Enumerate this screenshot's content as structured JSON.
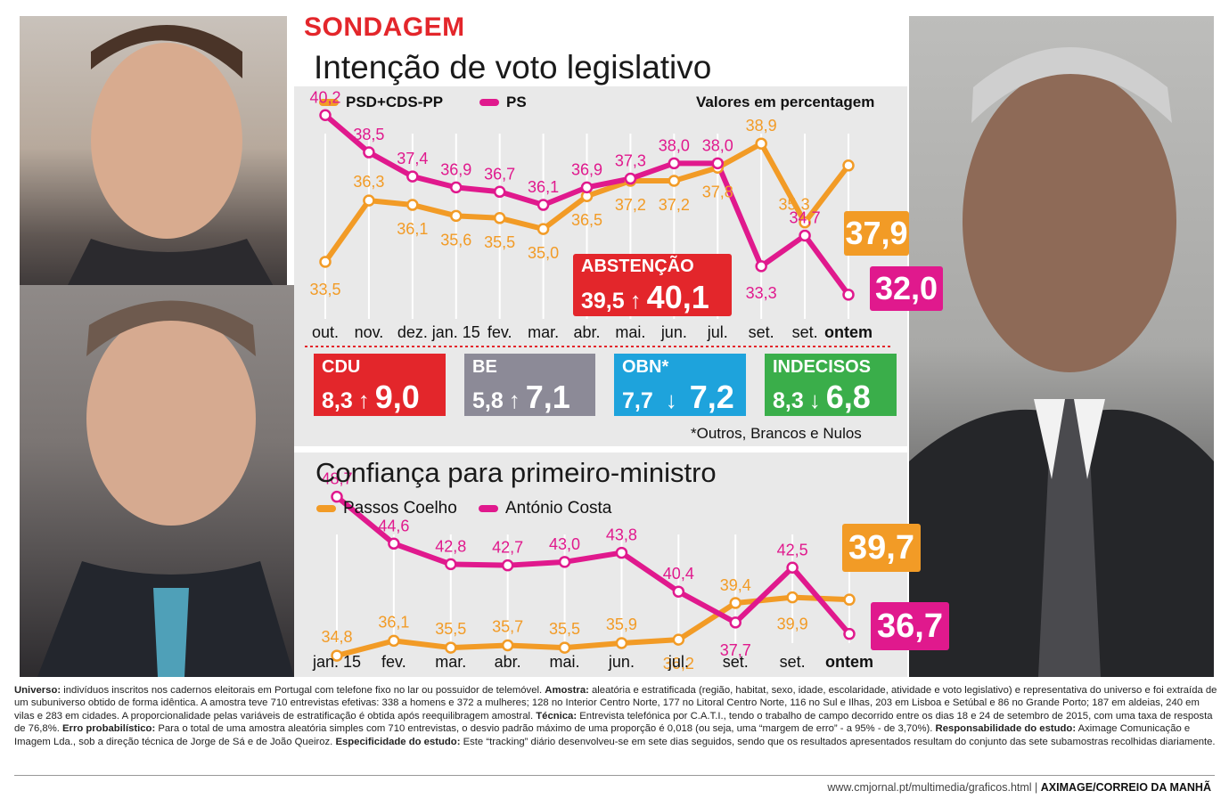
{
  "header": {
    "kicker": "SONDAGEM",
    "title": "Intenção de voto legislativo",
    "units_note": "Valores em percentagem"
  },
  "colors": {
    "orange": "#f29b26",
    "magenta": "#e0198d",
    "red": "#e3262b",
    "grey": "#8c8a97",
    "blue": "#1ea3dc",
    "green": "#3aae4a"
  },
  "chart_data": [
    {
      "type": "line",
      "title": "Intenção de voto legislativo",
      "xlabel": "",
      "ylabel": "Valores em percentagem",
      "categories": [
        "out.",
        "nov.",
        "dez.",
        "jan. 15",
        "fev.",
        "mar.",
        "abr.",
        "mai.",
        "jun.",
        "jul.",
        "set.",
        "set.",
        "ontem"
      ],
      "series": [
        {
          "name": "PSD+CDS-PP",
          "color": "#f29b26",
          "values": [
            33.5,
            36.3,
            36.1,
            35.6,
            35.5,
            35.0,
            36.5,
            37.2,
            37.2,
            37.8,
            38.9,
            35.3,
            37.9
          ]
        },
        {
          "name": "PS",
          "color": "#e0198d",
          "values": [
            40.2,
            38.5,
            37.4,
            36.9,
            36.7,
            36.1,
            36.9,
            37.3,
            38.0,
            38.0,
            33.3,
            34.7,
            32.0
          ]
        }
      ],
      "last_values": {
        "PSD+CDS-PP": "37,9",
        "PS": "32,0"
      },
      "ylim": [
        30,
        42
      ],
      "grid": true
    },
    {
      "type": "line",
      "title": "Confiança para primeiro-ministro",
      "xlabel": "",
      "ylabel": "",
      "categories": [
        "jan. 15",
        "fev.",
        "mar.",
        "abr.",
        "mai.",
        "jun.",
        "jul.",
        "set.",
        "set.",
        "ontem"
      ],
      "series": [
        {
          "name": "Passos Coelho",
          "color": "#f29b26",
          "values": [
            34.8,
            36.1,
            35.5,
            35.7,
            35.5,
            35.9,
            36.2,
            39.4,
            39.9,
            39.7
          ]
        },
        {
          "name": "António Costa",
          "color": "#e0198d",
          "values": [
            48.7,
            44.6,
            42.8,
            42.7,
            43.0,
            43.8,
            40.4,
            37.7,
            42.5,
            36.7
          ]
        }
      ],
      "last_values": {
        "Passos Coelho": "39,7",
        "António Costa": "36,7"
      },
      "ylim": [
        32,
        50
      ],
      "grid": true
    }
  ],
  "chart1": {
    "legend": [
      "PSD+CDS-PP",
      "PS"
    ],
    "labels_orange": [
      "33,5",
      "36,3",
      "36,1",
      "35,6",
      "35,5",
      "35,0",
      "36,5",
      "37,2",
      "37,2",
      "37,8",
      "38,9",
      "35,3"
    ],
    "labels_magenta": [
      "40,2",
      "38,5",
      "37,4",
      "36,9",
      "36,7",
      "36,1",
      "36,9",
      "37,3",
      "38,0",
      "38,0",
      "33,3",
      "34,7"
    ],
    "final_orange": "37,9",
    "final_magenta": "32,0"
  },
  "abstencao": {
    "label": "ABSTENÇÃO",
    "old": "39,5",
    "arrow": "↑",
    "new": "40,1"
  },
  "categories_boxes": [
    {
      "name": "CDU",
      "old": "8,3",
      "arrow": "↑",
      "new": "9,0"
    },
    {
      "name": "BE",
      "old": "5,8",
      "arrow": "↑",
      "new": "7,1"
    },
    {
      "name": "OBN*",
      "old": "7,7",
      "arrow": "↓",
      "new": "7,2"
    },
    {
      "name": "INDECISOS",
      "old": "8,3",
      "arrow": "↓",
      "new": "6,8"
    }
  ],
  "obn_note": "*Outros, Brancos e Nulos",
  "chart2": {
    "title": "Confiança para primeiro-ministro",
    "legend": [
      "Passos Coelho",
      "António Costa"
    ],
    "labels_orange": [
      "34,8",
      "36,1",
      "35,5",
      "35,7",
      "35,5",
      "35,9",
      "36,2",
      "39,4",
      "39,9"
    ],
    "labels_magenta": [
      "48,7",
      "44,6",
      "42,8",
      "42,7",
      "43,0",
      "43,8",
      "40,4",
      "37,7",
      "42,5"
    ],
    "final_orange": "39,7",
    "final_magenta": "36,7"
  },
  "methodology": {
    "universo_label": "Universo:",
    "universo": " indivíduos inscritos nos cadernos eleitorais em Portugal com telefone fixo no lar ou possuidor de telemóvel. ",
    "amostra_label": "Amostra:",
    "amostra": " aleatória e estratificada (região, habitat, sexo, idade, escolaridade, atividade e voto legislativo) e representativa do universo e foi extraída de um subuniverso obtido de forma idêntica. A amostra teve 710 entrevistas efetivas: 338 a homens e 372 a mulheres; 128 no Interior Centro Norte, 177 no Litoral Centro Norte, 116 no Sul e Ilhas, 203 em Lisboa e Setúbal e 86 no Grande Porto; 187 em aldeias, 240 em vilas e 283 em cidades. A proporcionalidade pelas variáveis de estratificação é obtida após reequilibragem amostral. ",
    "tecnica_label": "Técnica:",
    "tecnica": " Entrevista telefónica por C.A.T.I., tendo o trabalho de campo decorrido entre os dias 18 e 24 de setembro de 2015, com uma taxa de resposta de 76,8%. ",
    "erro_label": "Erro probabilístico:",
    "erro": " Para o total de uma amostra aleatória simples com 710 entrevistas, o desvio padrão máximo de uma proporção é 0,018 (ou seja, uma “margem de erro” - a 95% - de 3,70%). ",
    "resp_label": "Responsabilidade do estudo:",
    "resp": " Aximage Comunicação e Imagem Lda., sob a direção técnica de Jorge de Sá e de João Queiroz. ",
    "espec_label": "Especificidade do estudo:",
    "espec": " Este “tracking” diário desenvolveu-se em sete dias seguidos, sendo que os resultados apresentados resultam do conjunto das sete subamostras recolhidas diariamente."
  },
  "footer": {
    "url": "www.cmjornal.pt/multimedia/graficos.html",
    "separator": " | ",
    "credit": "AXIMAGE/CORREIO DA MANHÃ"
  }
}
